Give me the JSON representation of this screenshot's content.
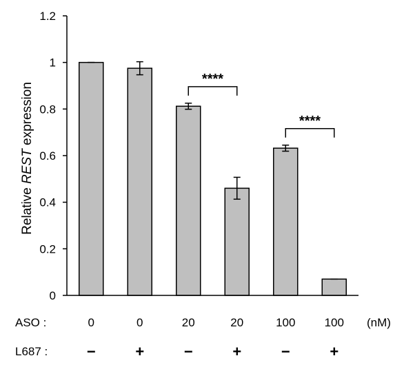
{
  "chart_data": {
    "type": "bar",
    "title": "",
    "xlabel": "",
    "ylabel_parts": [
      "Relative ",
      "REST",
      " expression"
    ],
    "ylim": [
      0,
      1.2
    ],
    "yticks": [
      "0",
      "0.2",
      "0.4",
      "0.6",
      "0.8",
      "1",
      "1.2"
    ],
    "grid": false,
    "bar_color": "#bfbfbf",
    "bars": [
      {
        "aso": "0",
        "l687": "−",
        "value": 1.0,
        "error": 0.0
      },
      {
        "aso": "0",
        "l687": "+",
        "value": 0.975,
        "error": 0.028
      },
      {
        "aso": "20",
        "l687": "−",
        "value": 0.812,
        "error": 0.013
      },
      {
        "aso": "20",
        "l687": "+",
        "value": 0.46,
        "error": 0.047
      },
      {
        "aso": "100",
        "l687": "−",
        "value": 0.632,
        "error": 0.013
      },
      {
        "aso": "100",
        "l687": "+",
        "value": 0.07,
        "error": 0.0
      }
    ],
    "row_labels": {
      "aso": "ASO :",
      "l687": "L687 :",
      "unit": "(nM)"
    },
    "significance": [
      {
        "from": 2,
        "to": 3,
        "label": "****"
      },
      {
        "from": 4,
        "to": 5,
        "label": "****"
      }
    ]
  }
}
